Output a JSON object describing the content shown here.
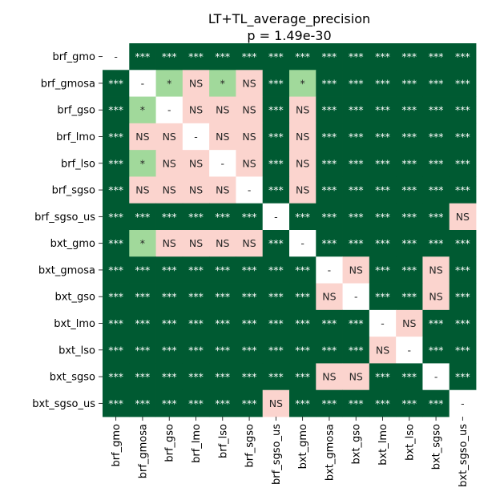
{
  "chart_data": {
    "type": "heatmap",
    "title": "LT+TL_average_precision",
    "subtitle": "p = 1.49e-30",
    "labels": [
      "brf_gmo",
      "brf_gmosa",
      "brf_gso",
      "brf_lmo",
      "brf_lso",
      "brf_sgso",
      "brf_sgso_us",
      "bxt_gmo",
      "bxt_gmosa",
      "bxt_gso",
      "bxt_lmo",
      "bxt_lso",
      "bxt_sgso",
      "bxt_sgso_us"
    ],
    "matrix": [
      [
        "-",
        "***",
        "***",
        "***",
        "***",
        "***",
        "***",
        "***",
        "***",
        "***",
        "***",
        "***",
        "***",
        "***"
      ],
      [
        "***",
        "-",
        "*",
        "NS",
        "*",
        "NS",
        "***",
        "*",
        "***",
        "***",
        "***",
        "***",
        "***",
        "***"
      ],
      [
        "***",
        "*",
        "-",
        "NS",
        "NS",
        "NS",
        "***",
        "NS",
        "***",
        "***",
        "***",
        "***",
        "***",
        "***"
      ],
      [
        "***",
        "NS",
        "NS",
        "-",
        "NS",
        "NS",
        "***",
        "NS",
        "***",
        "***",
        "***",
        "***",
        "***",
        "***"
      ],
      [
        "***",
        "*",
        "NS",
        "NS",
        "-",
        "NS",
        "***",
        "NS",
        "***",
        "***",
        "***",
        "***",
        "***",
        "***"
      ],
      [
        "***",
        "NS",
        "NS",
        "NS",
        "NS",
        "-",
        "***",
        "NS",
        "***",
        "***",
        "***",
        "***",
        "***",
        "***"
      ],
      [
        "***",
        "***",
        "***",
        "***",
        "***",
        "***",
        "-",
        "***",
        "***",
        "***",
        "***",
        "***",
        "***",
        "NS"
      ],
      [
        "***",
        "*",
        "NS",
        "NS",
        "NS",
        "NS",
        "***",
        "-",
        "***",
        "***",
        "***",
        "***",
        "***",
        "***"
      ],
      [
        "***",
        "***",
        "***",
        "***",
        "***",
        "***",
        "***",
        "***",
        "-",
        "NS",
        "***",
        "***",
        "NS",
        "***"
      ],
      [
        "***",
        "***",
        "***",
        "***",
        "***",
        "***",
        "***",
        "***",
        "NS",
        "-",
        "***",
        "***",
        "NS",
        "***"
      ],
      [
        "***",
        "***",
        "***",
        "***",
        "***",
        "***",
        "***",
        "***",
        "***",
        "***",
        "-",
        "NS",
        "***",
        "***"
      ],
      [
        "***",
        "***",
        "***",
        "***",
        "***",
        "***",
        "***",
        "***",
        "***",
        "***",
        "NS",
        "-",
        "***",
        "***"
      ],
      [
        "***",
        "***",
        "***",
        "***",
        "***",
        "***",
        "***",
        "***",
        "NS",
        "NS",
        "***",
        "***",
        "-",
        "***"
      ],
      [
        "***",
        "***",
        "***",
        "***",
        "***",
        "***",
        "NS",
        "***",
        "***",
        "***",
        "***",
        "***",
        "***",
        "-"
      ]
    ],
    "colors": {
      "***": "#005a32",
      "*": "#a1d99b",
      "NS": "#fbd4ce",
      "-": "#ffffff"
    },
    "text_colors": {
      "***": "#ffffff",
      "*": "#262626",
      "NS": "#262626",
      "-": "#262626"
    }
  }
}
